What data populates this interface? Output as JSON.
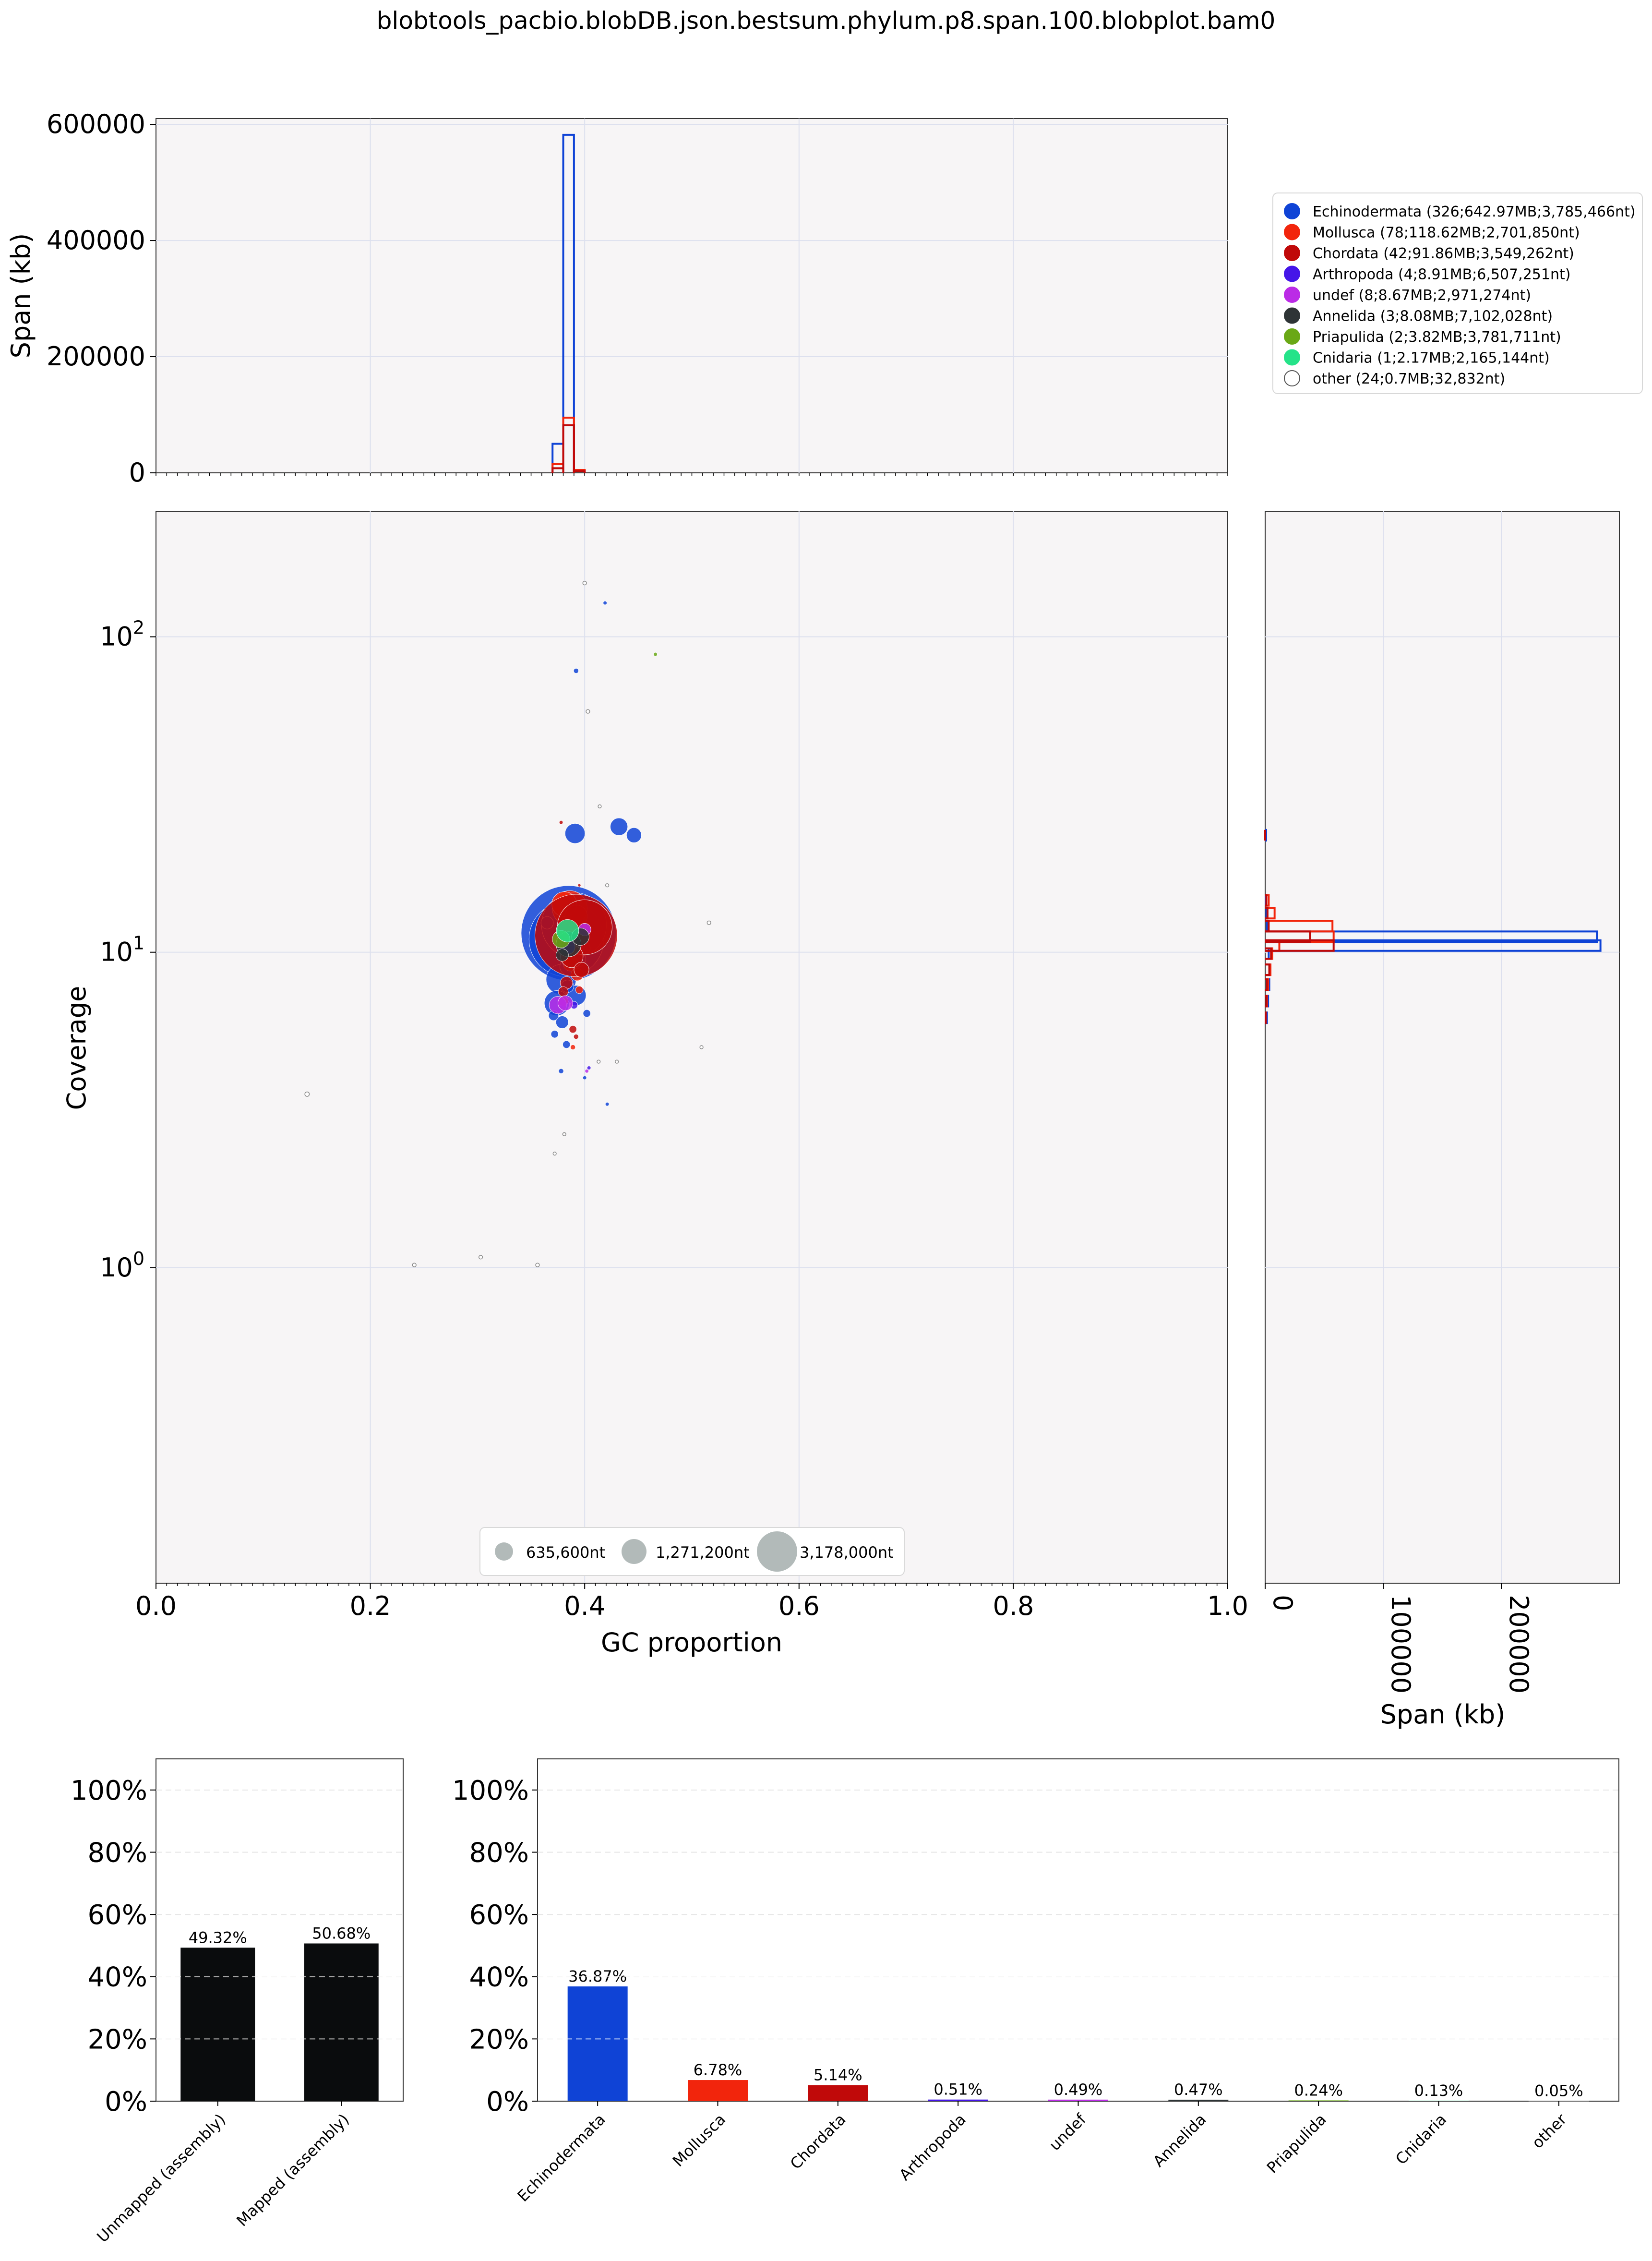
{
  "title": "blobtools_pacbio.blobDB.json.bestsum.phylum.p8.span.100.blobplot.bam0",
  "colors": {
    "panel_bg": "#f7f5f6",
    "Echinodermata": "#0f43d6",
    "Mollusca": "#f2250c",
    "Chordata": "#c00909",
    "Arthropoda": "#4516e8",
    "undef": "#bb2be6",
    "Annelida": "#2e3436",
    "Priapulida": "#6aa816",
    "Cnidaria": "#25e389",
    "other": "#ffffff",
    "size_legend": "#b2bab9",
    "mapped_bar": "#0a0c0d"
  },
  "top_hist": {
    "ylabel": "Span (kb)",
    "ticks": [
      "0",
      "200000",
      "400000",
      "600000"
    ]
  },
  "main": {
    "xlabel": "GC proportion",
    "ylabel": "Coverage",
    "xticks": [
      "0.0",
      "0.2",
      "0.4",
      "0.6",
      "0.8",
      "1.0"
    ],
    "yticks": [
      {
        "base": "10",
        "exp": "0"
      },
      {
        "base": "10",
        "exp": "1"
      },
      {
        "base": "10",
        "exp": "2"
      }
    ]
  },
  "right_hist": {
    "xlabel": "Span (kb)",
    "ticks": [
      "0",
      "100000",
      "200000"
    ]
  },
  "legend": {
    "entries": [
      "Echinodermata (326;642.97MB;3,785,466nt)",
      "Mollusca (78;118.62MB;2,701,850nt)",
      "Chordata (42;91.86MB;3,549,262nt)",
      "Arthropoda (4;8.91MB;6,507,251nt)",
      "undef (8;8.67MB;2,971,274nt)",
      "Annelida (3;8.08MB;7,102,028nt)",
      "Priapulida (2;3.82MB;3,781,711nt)",
      "Cnidaria (1;2.17MB;2,165,144nt)",
      "other (24;0.7MB;32,832nt)"
    ]
  },
  "size_legend": {
    "labels": [
      "635,600nt",
      "1,271,200nt",
      "3,178,000nt"
    ]
  },
  "mapped_bars": {
    "ticks": [
      "0%",
      "20%",
      "40%",
      "60%",
      "80%",
      "100%"
    ],
    "categories": [
      "Unmapped (assembly)",
      "Mapped (assembly)"
    ],
    "value_labels": [
      "49.32%",
      "50.68%"
    ]
  },
  "taxa_bars": {
    "ticks": [
      "0%",
      "20%",
      "40%",
      "60%",
      "80%",
      "100%"
    ],
    "categories": [
      "Echinodermata",
      "Mollusca",
      "Chordata",
      "Arthropoda",
      "undef",
      "Annelida",
      "Priapulida",
      "Cnidaria",
      "other"
    ],
    "value_labels": [
      "36.87%",
      "6.78%",
      "5.14%",
      "0.51%",
      "0.49%",
      "0.47%",
      "0.24%",
      "0.13%",
      "0.05%"
    ]
  },
  "chart_data": [
    {
      "type": "scatter",
      "xlabel": "GC proportion",
      "ylabel": "Coverage",
      "xlim": [
        0,
        1
      ],
      "ylim": [
        0.1,
        250
      ],
      "yscale": "log",
      "grid": true,
      "legend": "top-right",
      "series": [
        {
          "name": "Echinodermata",
          "points": [
            {
              "x": 0.385,
              "y": 11.5,
              "r": 38
            },
            {
              "x": 0.383,
              "y": 11.0,
              "r": 30
            },
            {
              "x": 0.39,
              "y": 12.2,
              "r": 26
            },
            {
              "x": 0.391,
              "y": 23.8,
              "r": 8
            },
            {
              "x": 0.432,
              "y": 25.0,
              "r": 7
            },
            {
              "x": 0.446,
              "y": 23.5,
              "r": 6
            },
            {
              "x": 0.378,
              "y": 8.2,
              "r": 12
            },
            {
              "x": 0.374,
              "y": 6.9,
              "r": 10
            },
            {
              "x": 0.392,
              "y": 7.3,
              "r": 8
            },
            {
              "x": 0.379,
              "y": 6.0,
              "r": 5
            },
            {
              "x": 0.371,
              "y": 6.3,
              "r": 4
            },
            {
              "x": 0.383,
              "y": 5.1,
              "r": 3
            },
            {
              "x": 0.378,
              "y": 4.2,
              "r": 2
            },
            {
              "x": 0.421,
              "y": 3.3,
              "r": 1.5
            },
            {
              "x": 0.4,
              "y": 4.0,
              "r": 1.5
            },
            {
              "x": 0.392,
              "y": 78,
              "r": 2
            },
            {
              "x": 0.419,
              "y": 128,
              "r": 1.5
            },
            {
              "x": 0.365,
              "y": 12.4,
              "r": 5
            },
            {
              "x": 0.394,
              "y": 9.5,
              "r": 6
            },
            {
              "x": 0.384,
              "y": 7.8,
              "r": 5
            },
            {
              "x": 0.402,
              "y": 6.4,
              "r": 3
            },
            {
              "x": 0.372,
              "y": 5.5,
              "r": 3
            },
            {
              "x": 0.385,
              "y": 9.0,
              "r": 7
            },
            {
              "x": 0.398,
              "y": 10.3,
              "r": 6
            }
          ]
        },
        {
          "name": "Mollusca",
          "points": [
            {
              "x": 0.386,
              "y": 13.8,
              "r": 14
            },
            {
              "x": 0.381,
              "y": 14.2,
              "r": 10
            },
            {
              "x": 0.392,
              "y": 13.0,
              "r": 9
            },
            {
              "x": 0.387,
              "y": 9.2,
              "r": 6
            },
            {
              "x": 0.393,
              "y": 8.5,
              "r": 5
            },
            {
              "x": 0.38,
              "y": 7.0,
              "r": 4
            },
            {
              "x": 0.389,
              "y": 5.0,
              "r": 2
            },
            {
              "x": 0.395,
              "y": 7.6,
              "r": 3
            }
          ]
        },
        {
          "name": "Chordata",
          "points": [
            {
              "x": 0.392,
              "y": 11.3,
              "r": 33
            },
            {
              "x": 0.4,
              "y": 12.0,
              "r": 22
            },
            {
              "x": 0.388,
              "y": 9.7,
              "r": 9
            },
            {
              "x": 0.397,
              "y": 8.8,
              "r": 6
            },
            {
              "x": 0.383,
              "y": 8.0,
              "r": 5
            },
            {
              "x": 0.389,
              "y": 5.7,
              "r": 3
            },
            {
              "x": 0.392,
              "y": 5.4,
              "r": 2
            },
            {
              "x": 0.378,
              "y": 25.8,
              "r": 1.5
            },
            {
              "x": 0.395,
              "y": 16.3,
              "r": 1.2
            },
            {
              "x": 0.38,
              "y": 7.5,
              "r": 4
            }
          ]
        },
        {
          "name": "Arthropoda",
          "points": [
            {
              "x": 0.384,
              "y": 10.4,
              "r": 6
            },
            {
              "x": 0.39,
              "y": 6.8,
              "r": 3
            },
            {
              "x": 0.404,
              "y": 4.3,
              "r": 1.5
            }
          ]
        },
        {
          "name": "undef",
          "points": [
            {
              "x": 0.375,
              "y": 6.8,
              "r": 7
            },
            {
              "x": 0.382,
              "y": 6.9,
              "r": 6
            },
            {
              "x": 0.402,
              "y": 4.2,
              "r": 1.5
            },
            {
              "x": 0.4,
              "y": 11.8,
              "r": 5
            }
          ]
        },
        {
          "name": "Annelida",
          "points": [
            {
              "x": 0.385,
              "y": 10.6,
              "r": 10
            },
            {
              "x": 0.396,
              "y": 11.2,
              "r": 7
            },
            {
              "x": 0.379,
              "y": 9.8,
              "r": 5
            }
          ]
        },
        {
          "name": "Priapulida",
          "points": [
            {
              "x": 0.378,
              "y": 11.0,
              "r": 7
            },
            {
              "x": 0.466,
              "y": 88,
              "r": 1.5
            }
          ]
        },
        {
          "name": "Cnidaria",
          "points": [
            {
              "x": 0.384,
              "y": 11.7,
              "r": 9
            }
          ]
        },
        {
          "name": "other",
          "points": [
            {
              "x": 0.141,
              "y": 3.55,
              "r": 1.8
            },
            {
              "x": 0.241,
              "y": 1.02,
              "r": 1.5
            },
            {
              "x": 0.303,
              "y": 1.08,
              "r": 1.5
            },
            {
              "x": 0.356,
              "y": 1.02,
              "r": 1.5
            },
            {
              "x": 0.4,
              "y": 148,
              "r": 1.5
            },
            {
              "x": 0.403,
              "y": 58,
              "r": 1.5
            },
            {
              "x": 0.414,
              "y": 29,
              "r": 1.3
            },
            {
              "x": 0.421,
              "y": 16.3,
              "r": 1.3
            },
            {
              "x": 0.516,
              "y": 12.4,
              "r": 1.5
            },
            {
              "x": 0.509,
              "y": 5.0,
              "r": 1.3
            },
            {
              "x": 0.43,
              "y": 4.5,
              "r": 1.3
            },
            {
              "x": 0.381,
              "y": 2.65,
              "r": 1.3
            },
            {
              "x": 0.372,
              "y": 2.3,
              "r": 1.3
            },
            {
              "x": 0.413,
              "y": 4.5,
              "r": 1.3
            }
          ]
        }
      ],
      "size_legend_values": [
        635600,
        1271200,
        3178000
      ]
    },
    {
      "type": "bar",
      "subtype": "step-histogram",
      "ylabel": "Span (kb)",
      "xlim": [
        0,
        1
      ],
      "ylim": [
        0,
        600000
      ],
      "bin_width": 0.01,
      "series": [
        {
          "name": "Echinodermata",
          "bins": [
            {
              "x": 0.37,
              "v": 50000
            },
            {
              "x": 0.38,
              "v": 582000
            },
            {
              "x": 0.39,
              "v": 4000
            }
          ]
        },
        {
          "name": "Mollusca",
          "bins": [
            {
              "x": 0.37,
              "v": 15000
            },
            {
              "x": 0.38,
              "v": 95000
            },
            {
              "x": 0.39,
              "v": 5000
            }
          ]
        },
        {
          "name": "Chordata",
          "bins": [
            {
              "x": 0.37,
              "v": 8000
            },
            {
              "x": 0.38,
              "v": 82000
            },
            {
              "x": 0.39,
              "v": 3000
            }
          ]
        }
      ]
    },
    {
      "type": "bar",
      "subtype": "step-histogram-horizontal",
      "xlabel": "Span (kb)",
      "xlim": [
        0,
        300000
      ],
      "bins_coverage": [
        6.2,
        7.0,
        7.9,
        8.8,
        9.9,
        10.5,
        11.2,
        12.1,
        13.3,
        14.6,
        23.5
      ],
      "series": [
        {
          "name": "Echinodermata",
          "values": [
            1500,
            2500,
            3500,
            4000,
            3000,
            284000,
            281000,
            1500,
            1000,
            500,
            800
          ]
        },
        {
          "name": "Mollusca",
          "values": [
            500,
            1500,
            2500,
            4500,
            6000,
            12000,
            58000,
            57000,
            8000,
            3000,
            0
          ]
        },
        {
          "name": "Chordata",
          "values": [
            500,
            1000,
            1500,
            3500,
            5000,
            58000,
            38000,
            3000,
            2000,
            1000,
            0
          ]
        }
      ]
    },
    {
      "type": "bar",
      "categories": [
        "Unmapped (assembly)",
        "Mapped (assembly)"
      ],
      "values": [
        49.32,
        50.68
      ],
      "ylim": [
        0,
        110
      ],
      "unit": "%"
    },
    {
      "type": "bar",
      "categories": [
        "Echinodermata",
        "Mollusca",
        "Chordata",
        "Arthropoda",
        "undef",
        "Annelida",
        "Priapulida",
        "Cnidaria",
        "other"
      ],
      "values": [
        36.87,
        6.78,
        5.14,
        0.51,
        0.49,
        0.47,
        0.24,
        0.13,
        0.05
      ],
      "ylim": [
        0,
        110
      ],
      "unit": "%"
    }
  ]
}
